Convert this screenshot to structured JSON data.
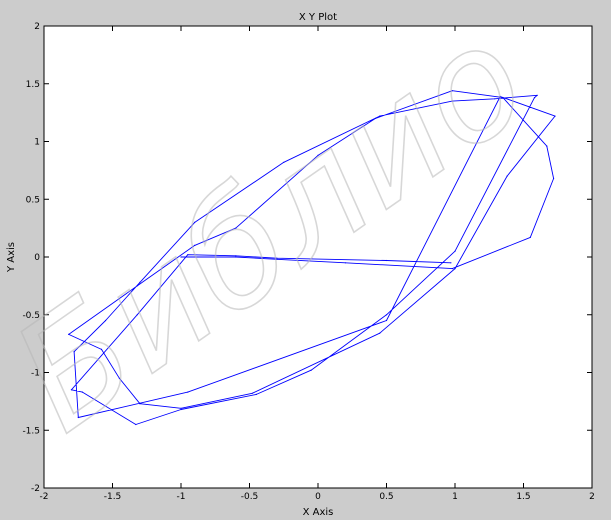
{
  "watermark": "Библио",
  "chart_data": {
    "type": "line",
    "title": "X Y Plot",
    "xlabel": "X Axis",
    "ylabel": "Y Axis",
    "xlim": [
      -2,
      2
    ],
    "ylim": [
      -2,
      2
    ],
    "xticks": [
      "-2",
      "-1.5",
      "-1",
      "-0.5",
      "0",
      "0.5",
      "1",
      "1.5",
      "2"
    ],
    "yticks": [
      "-2",
      "-1.5",
      "-1",
      "-0.5",
      "0",
      "0.5",
      "1",
      "1.5",
      "2"
    ],
    "grid": false,
    "line_color": "#0000ff",
    "series": [
      {
        "name": "",
        "x": [
          0.97,
          0.5,
          -0.3,
          -0.6,
          -0.95,
          -1.32,
          -1.8,
          -1.72,
          -1.33,
          -1.0,
          -0.45,
          -0.05,
          0.5,
          1.0,
          1.58,
          1.6,
          1.29,
          0.98,
          0.45,
          -0.25,
          -0.9,
          -1.3,
          -1.55,
          -1.78,
          -1.75,
          -0.95,
          0.5,
          1.33,
          1.73,
          1.38,
          1.0,
          0.45,
          -0.48,
          -1.0,
          -1.3,
          -1.45,
          -1.58,
          -1.82,
          -1.32,
          -0.9,
          -0.6,
          0.0,
          0.42,
          0.98,
          1.35,
          1.67,
          1.72,
          1.55,
          0.98,
          0.2,
          -0.3,
          -0.6,
          -1.0
        ],
        "y": [
          -0.05,
          -0.03,
          -0.01,
          0.01,
          0.02,
          -0.5,
          -1.15,
          -1.17,
          -1.45,
          -1.32,
          -1.19,
          -0.98,
          -0.5,
          0.05,
          1.38,
          1.4,
          1.37,
          1.35,
          1.22,
          0.82,
          0.3,
          -0.22,
          -0.55,
          -0.82,
          -1.39,
          -1.17,
          -0.55,
          1.39,
          1.22,
          0.7,
          -0.1,
          -0.66,
          -1.18,
          -1.31,
          -1.27,
          -1.05,
          -0.8,
          -0.67,
          -0.25,
          0.1,
          0.25,
          0.88,
          1.2,
          1.44,
          1.38,
          0.96,
          0.68,
          0.17,
          -0.1,
          -0.05,
          -0.02,
          0.0,
          0.0
        ]
      }
    ]
  }
}
